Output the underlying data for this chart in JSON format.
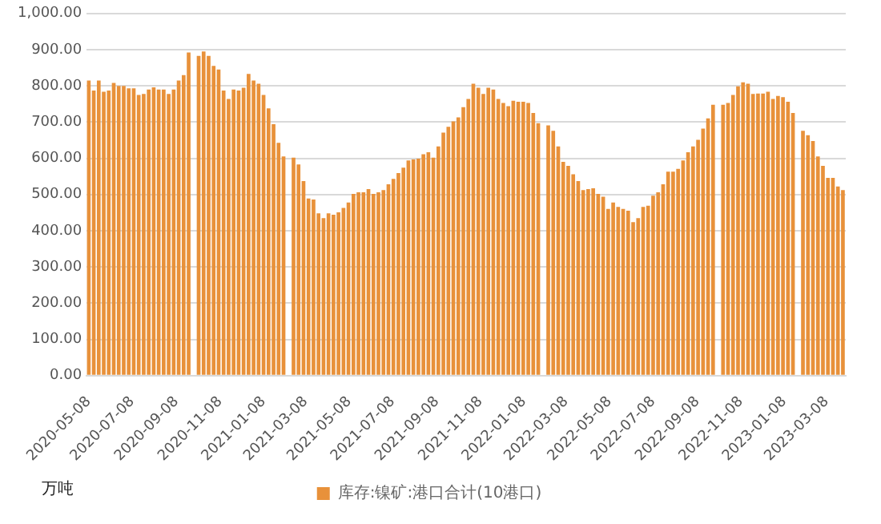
{
  "chart_data": {
    "type": "bar",
    "x": [
      "2020-05-08",
      "2020-05-15",
      "2020-05-22",
      "2020-05-29",
      "2020-06-05",
      "2020-06-12",
      "2020-06-19",
      "2020-06-26",
      "2020-07-03",
      "2020-07-10",
      "2020-07-17",
      "2020-07-24",
      "2020-07-31",
      "2020-08-07",
      "2020-08-14",
      "2020-08-21",
      "2020-08-28",
      "2020-09-04",
      "2020-09-11",
      "2020-09-18",
      "2020-09-25",
      "2020-10-02",
      "2020-10-09",
      "2020-10-16",
      "2020-10-23",
      "2020-10-30",
      "2020-11-06",
      "2020-11-13",
      "2020-11-20",
      "2020-11-27",
      "2020-12-04",
      "2020-12-11",
      "2020-12-18",
      "2020-12-25",
      "2021-01-01",
      "2021-01-08",
      "2021-01-15",
      "2021-01-22",
      "2021-01-29",
      "2021-02-05",
      "2021-02-12",
      "2021-02-19",
      "2021-02-26",
      "2021-03-05",
      "2021-03-12",
      "2021-03-19",
      "2021-03-26",
      "2021-04-02",
      "2021-04-09",
      "2021-04-16",
      "2021-04-23",
      "2021-04-30",
      "2021-05-07",
      "2021-05-14",
      "2021-05-21",
      "2021-05-28",
      "2021-06-04",
      "2021-06-11",
      "2021-06-18",
      "2021-06-25",
      "2021-07-02",
      "2021-07-09",
      "2021-07-16",
      "2021-07-23",
      "2021-07-30",
      "2021-08-06",
      "2021-08-13",
      "2021-08-20",
      "2021-08-27",
      "2021-09-03",
      "2021-09-10",
      "2021-09-17",
      "2021-09-24",
      "2021-10-01",
      "2021-10-08",
      "2021-10-15",
      "2021-10-22",
      "2021-10-29",
      "2021-11-05",
      "2021-11-12",
      "2021-11-19",
      "2021-11-26",
      "2021-12-03",
      "2021-12-10",
      "2021-12-17",
      "2021-12-24",
      "2021-12-31",
      "2022-01-07",
      "2022-01-14",
      "2022-01-21",
      "2022-01-28",
      "2022-02-04",
      "2022-02-11",
      "2022-02-18",
      "2022-02-25",
      "2022-03-04",
      "2022-03-11",
      "2022-03-18",
      "2022-03-25",
      "2022-04-01",
      "2022-04-08",
      "2022-04-15",
      "2022-04-22",
      "2022-04-29",
      "2022-05-06",
      "2022-05-13",
      "2022-05-20",
      "2022-05-27",
      "2022-06-03",
      "2022-06-10",
      "2022-06-17",
      "2022-06-24",
      "2022-07-01",
      "2022-07-08",
      "2022-07-15",
      "2022-07-22",
      "2022-07-29",
      "2022-08-05",
      "2022-08-12",
      "2022-08-19",
      "2022-08-26",
      "2022-09-02",
      "2022-09-09",
      "2022-09-16",
      "2022-09-23",
      "2022-09-30",
      "2022-10-07",
      "2022-10-14",
      "2022-10-21",
      "2022-10-28",
      "2022-11-04",
      "2022-11-11",
      "2022-11-18",
      "2022-11-25",
      "2022-12-02",
      "2022-12-09",
      "2022-12-16",
      "2022-12-23",
      "2022-12-30",
      "2023-01-06",
      "2023-01-13",
      "2023-01-20",
      "2023-01-27",
      "2023-02-03",
      "2023-02-10",
      "2023-02-17",
      "2023-02-24",
      "2023-03-03",
      "2023-03-10",
      "2023-03-17",
      "2023-03-24",
      "2023-03-31"
    ],
    "series": [
      {
        "name": "库存:镍矿:港口合计(10港口)",
        "color": "#e8913a",
        "values": [
          815,
          787,
          815,
          784,
          787,
          808,
          800,
          800,
          793,
          793,
          775,
          778,
          790,
          796,
          790,
          790,
          778,
          790,
          815,
          830,
          892,
          null,
          883,
          895,
          883,
          855,
          845,
          787,
          764,
          790,
          787,
          795,
          833,
          815,
          806,
          775,
          738,
          694,
          643,
          605,
          null,
          602,
          583,
          537,
          489,
          486,
          448,
          435,
          448,
          444,
          451,
          463,
          478,
          502,
          506,
          506,
          515,
          502,
          506,
          512,
          528,
          543,
          559,
          574,
          594,
          597,
          599,
          611,
          617,
          602,
          633,
          671,
          687,
          702,
          713,
          741,
          764,
          806,
          795,
          778,
          795,
          790,
          764,
          753,
          744,
          759,
          756,
          756,
          753,
          725,
          697,
          null,
          691,
          676,
          633,
          590,
          579,
          556,
          537,
          512,
          515,
          517,
          502,
          494,
          460,
          478,
          466,
          460,
          455,
          424,
          435,
          466,
          469,
          497,
          506,
          528,
          563,
          563,
          571,
          594,
          617,
          633,
          651,
          682,
          710,
          748,
          null,
          748,
          753,
          775,
          799,
          810,
          806,
          778,
          779,
          779,
          784,
          764,
          772,
          769,
          756,
          725,
          null,
          676,
          664,
          648,
          605,
          579,
          546,
          546,
          522,
          512
        ]
      }
    ],
    "xlim": [
      "2020-05-05",
      "2023-04-04"
    ],
    "xticks": [
      "2020-05-08",
      "2020-07-08",
      "2020-09-08",
      "2020-11-08",
      "2021-01-08",
      "2021-03-08",
      "2021-05-08",
      "2021-07-08",
      "2021-09-08",
      "2021-11-08",
      "2022-01-08",
      "2022-03-08",
      "2022-05-08",
      "2022-07-08",
      "2022-09-08",
      "2022-11-08",
      "2023-01-08",
      "2023-03-08"
    ],
    "ylim": [
      0,
      1000
    ],
    "yticks": [
      {
        "value": 0,
        "label": "0.00"
      },
      {
        "value": 100,
        "label": "100.00"
      },
      {
        "value": 200,
        "label": "200.00"
      },
      {
        "value": 300,
        "label": "300.00"
      },
      {
        "value": 400,
        "label": "400.00"
      },
      {
        "value": 500,
        "label": "500.00"
      },
      {
        "value": 600,
        "label": "600.00"
      },
      {
        "value": 700,
        "label": "700.00"
      },
      {
        "value": 800,
        "label": "800.00"
      },
      {
        "value": 900,
        "label": "900.00"
      },
      {
        "value": 1000,
        "label": "1,000.00"
      }
    ],
    "grid": "y",
    "legend": "bottom",
    "annotations": [
      "万吨"
    ]
  }
}
